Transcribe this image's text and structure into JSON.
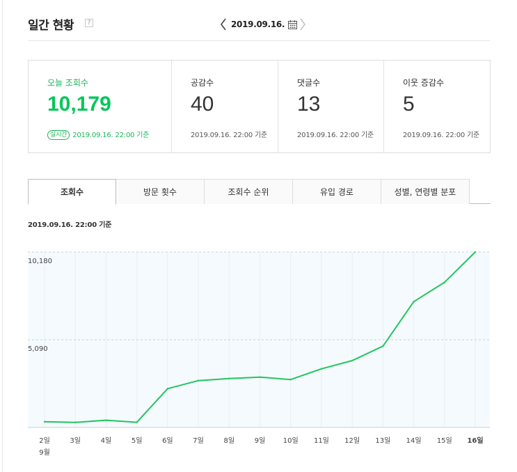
{
  "header": {
    "title": "일간 현황",
    "help_glyph": "?",
    "date": "2019.09.16."
  },
  "stats": [
    {
      "label": "오늘 조회수",
      "value": "10,179",
      "badge": "실시간",
      "basis": "2019.09.16. 22:00 기준"
    },
    {
      "label": "공감수",
      "value": "40",
      "basis": "2019.09.16. 22:00 기준"
    },
    {
      "label": "댓글수",
      "value": "13",
      "basis": "2019.09.16. 22:00 기준"
    },
    {
      "label": "이웃 증감수",
      "value": "5",
      "basis": "2019.09.16. 22:00 기준"
    }
  ],
  "tabs": [
    "조회수",
    "방문 횟수",
    "조회수 순위",
    "유입 경로",
    "성별, 연령별 분포"
  ],
  "active_tab": 0,
  "chart_basis": "2019.09.16. 22:00 기준",
  "colors": {
    "accent": "#03c75a",
    "line": "#22c55e",
    "plot_bg": "#f4fafd"
  },
  "icons": [
    "chevron-left-icon",
    "calendar-icon",
    "chevron-right-icon",
    "help-icon"
  ],
  "chart_data": {
    "type": "line",
    "x": [
      "2일",
      "3일",
      "4일",
      "5일",
      "6일",
      "7일",
      "8일",
      "9일",
      "10일",
      "11일",
      "12일",
      "13일",
      "14일",
      "15일",
      "16일"
    ],
    "month_label": "9월",
    "series": [
      {
        "values": [
          330,
          290,
          420,
          300,
          2250,
          2720,
          2840,
          2920,
          2780,
          3400,
          3880,
          4720,
          7300,
          8420,
          10179
        ]
      }
    ],
    "yticks": [
      5090,
      10180
    ],
    "ytick_labels": [
      "5,090",
      "10,180"
    ],
    "ylim": [
      0,
      10180
    ],
    "highlight_last": true,
    "grid": true
  }
}
